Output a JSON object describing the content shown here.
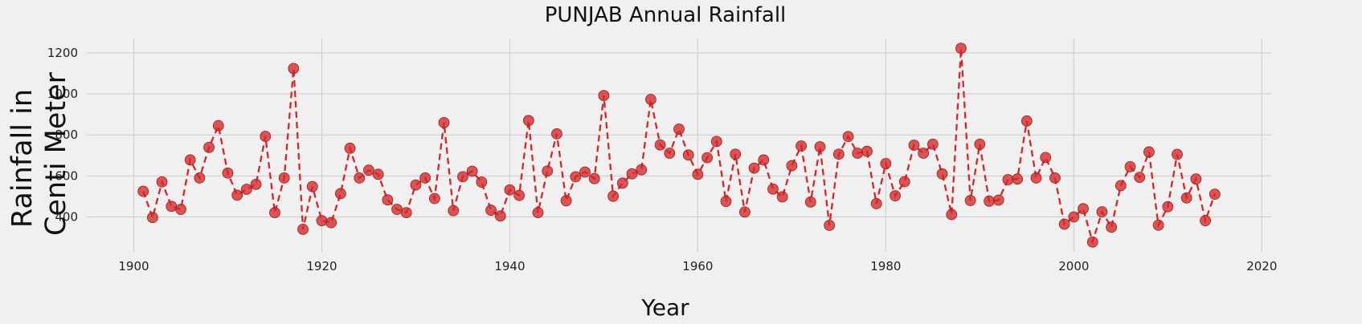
{
  "chart_data": {
    "type": "line",
    "title": "PUNJAB Annual Rainfall",
    "xlabel": "Year",
    "ylabel_lines": [
      "Rainfall in",
      "Centi Meter"
    ],
    "xlim": [
      1895,
      2021
    ],
    "ylim": [
      230,
      1270
    ],
    "xticks": [
      1900,
      1920,
      1940,
      1960,
      1980,
      2000,
      2020
    ],
    "yticks": [
      400,
      600,
      800,
      1000,
      1200
    ],
    "grid": true,
    "line_style": "dashed",
    "marker": "circle",
    "color": "#d62728",
    "series": [
      {
        "x": [
          1901,
          1902,
          1903,
          1904,
          1905,
          1906,
          1907,
          1908,
          1909,
          1910,
          1911,
          1912,
          1913,
          1914,
          1915,
          1916,
          1917,
          1918,
          1919,
          1920,
          1921,
          1922,
          1923,
          1924,
          1925,
          1926,
          1927,
          1928,
          1929,
          1930,
          1931,
          1932,
          1933,
          1934,
          1935,
          1936,
          1937,
          1938,
          1939,
          1940,
          1941,
          1942,
          1943,
          1944,
          1945,
          1946,
          1947,
          1948,
          1949,
          1950,
          1951,
          1952,
          1953,
          1954,
          1955,
          1956,
          1957,
          1958,
          1959,
          1960,
          1961,
          1962,
          1963,
          1964,
          1965,
          1966,
          1967,
          1968,
          1969,
          1970,
          1971,
          1972,
          1973,
          1974,
          1975,
          1976,
          1977,
          1978,
          1979,
          1980,
          1981,
          1982,
          1983,
          1984,
          1985,
          1986,
          1987,
          1988,
          1989,
          1990,
          1991,
          1992,
          1993,
          1994,
          1995,
          1996,
          1997,
          1998,
          1999,
          2000,
          2001,
          2002,
          2003,
          2004,
          2005,
          2006,
          2007,
          2008,
          2009,
          2010,
          2011,
          2012,
          2013,
          2014,
          2015
        ],
        "values": [
          525,
          397,
          571,
          452,
          437,
          678,
          590,
          739,
          845,
          614,
          506,
          535,
          559,
          793,
          421,
          590,
          1124,
          340,
          548,
          382,
          372,
          514,
          735,
          590,
          628,
          608,
          483,
          437,
          421,
          556,
          590,
          490,
          860,
          431,
          596,
          623,
          570,
          433,
          405,
          532,
          505,
          870,
          421,
          624,
          805,
          479,
          596,
          619,
          587,
          992,
          501,
          565,
          610,
          630,
          973,
          751,
          711,
          828,
          702,
          608,
          689,
          768,
          476,
          706,
          424,
          638,
          678,
          536,
          498,
          650,
          746,
          473,
          742,
          359,
          706,
          792,
          711,
          720,
          465,
          660,
          503,
          572,
          750,
          711,
          755,
          610,
          412,
          1222,
          480,
          755,
          477,
          482,
          582,
          585,
          868,
          590,
          690,
          590,
          365,
          400,
          440,
          278,
          425,
          350,
          553,
          645,
          593,
          717,
          360,
          450,
          705,
          493,
          585,
          382,
          511
        ]
      }
    ]
  }
}
